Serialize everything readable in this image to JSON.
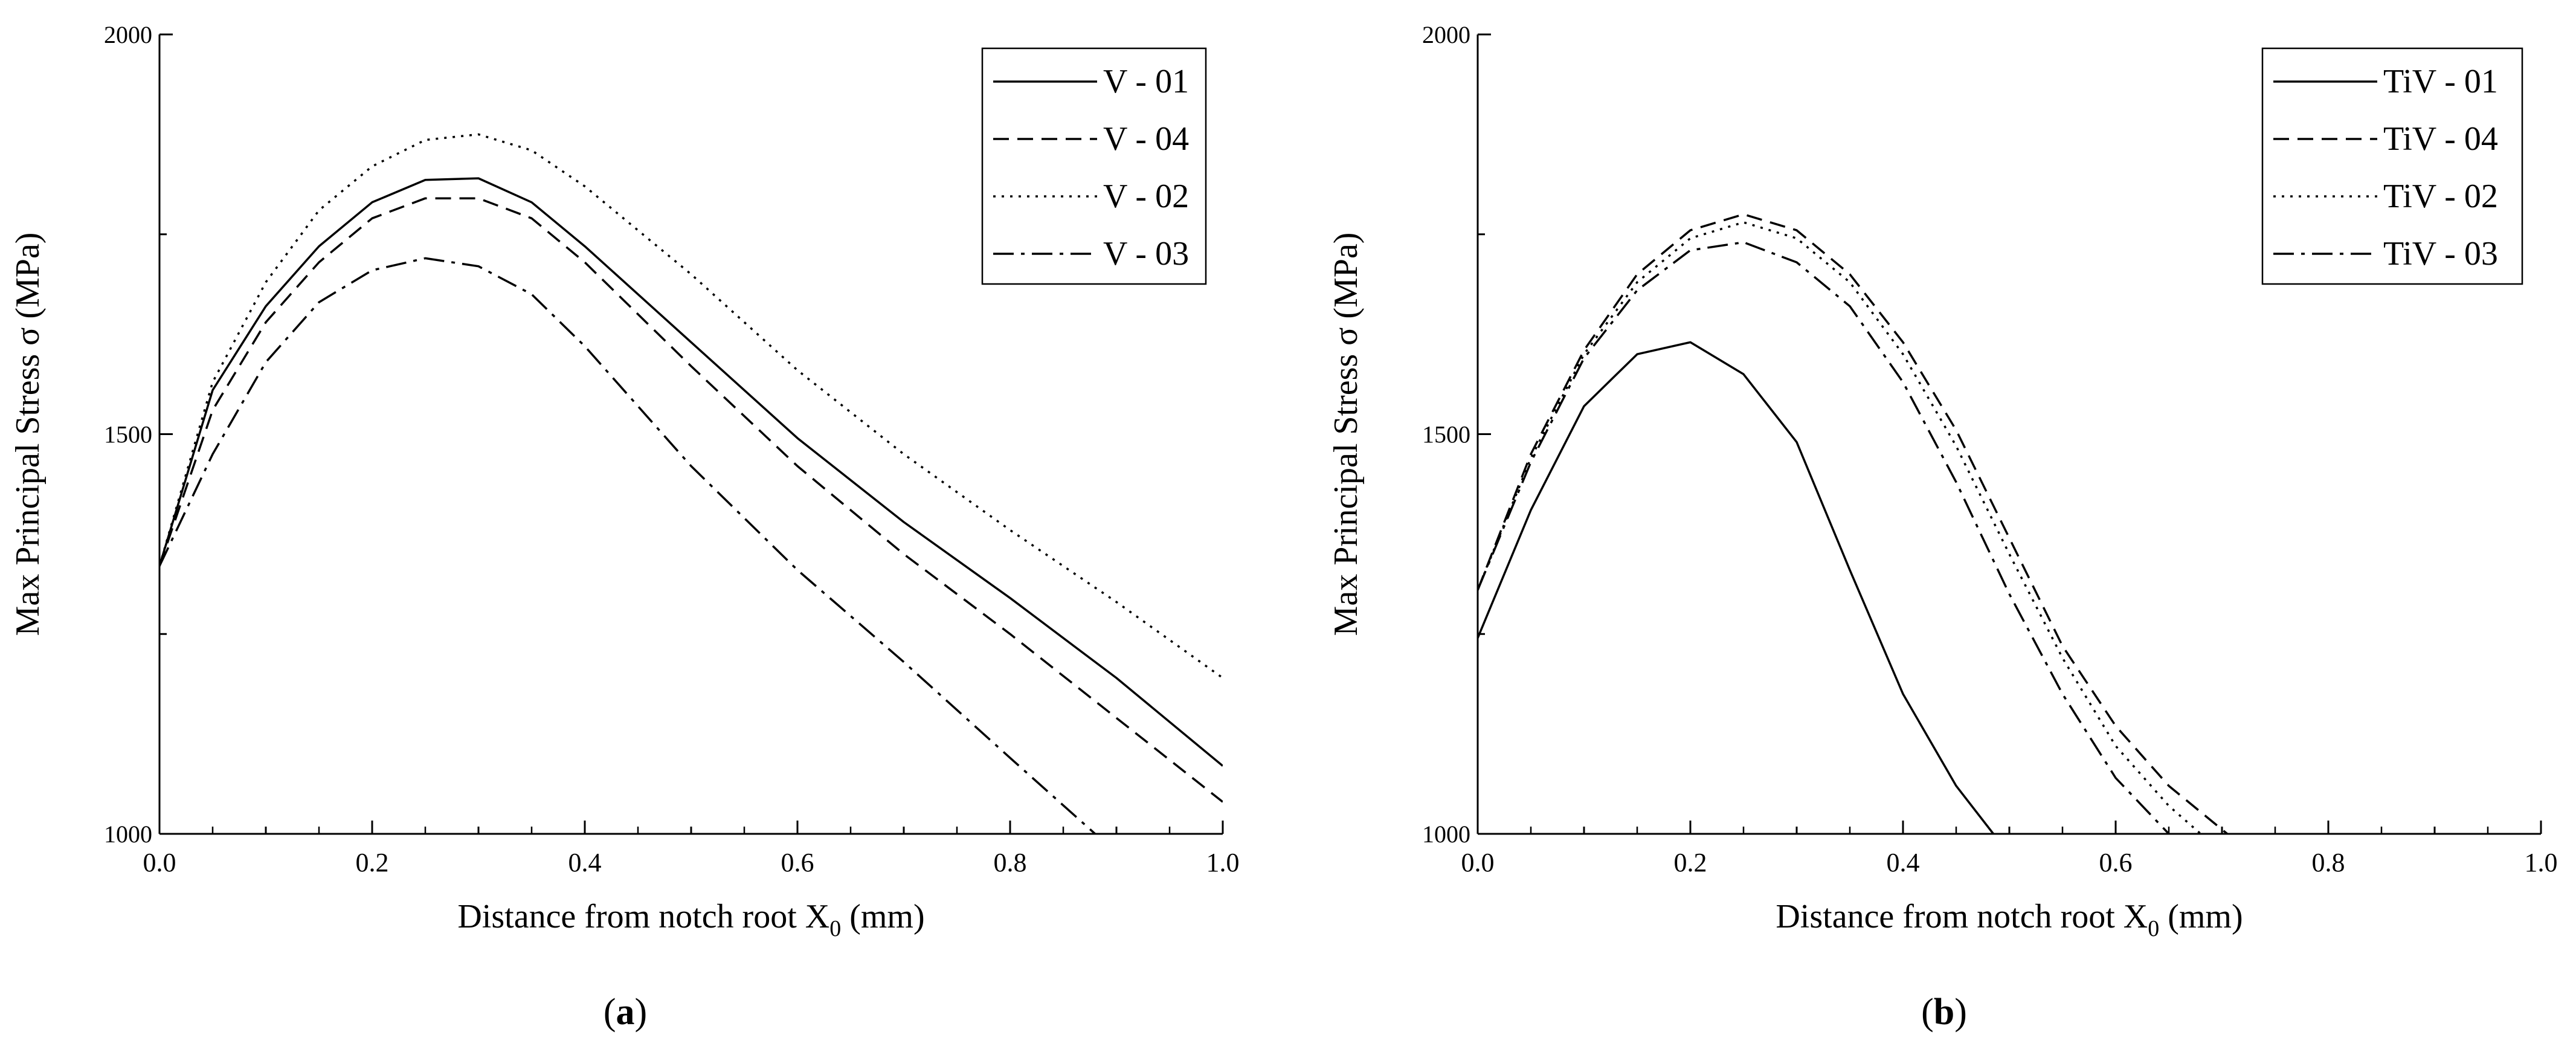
{
  "chart_data": [
    {
      "type": "line",
      "panel_label": "(a)",
      "xlabel": "Distance from notch root X0 (mm)",
      "xlabel_main": "Distance from notch root X",
      "xlabel_sub": "0",
      "xlabel_tail": " (mm)",
      "ylabel": "Max Principal Stress σ (MPa)",
      "xlim": [
        0.0,
        1.0
      ],
      "ylim": [
        1000,
        2000
      ],
      "xticks": [
        "0.0",
        "0.2",
        "0.4",
        "0.6",
        "0.8",
        "1.0"
      ],
      "yticks": [
        "1000",
        "1500",
        "2000"
      ],
      "legend_position": "top-right",
      "series": [
        {
          "name": "V - 01",
          "style": "solid",
          "x": [
            0,
            0.05,
            0.1,
            0.15,
            0.2,
            0.25,
            0.3,
            0.35,
            0.4,
            0.5,
            0.6,
            0.7,
            0.8,
            0.9,
            1.0
          ],
          "y": [
            1335,
            1555,
            1660,
            1735,
            1790,
            1818,
            1820,
            1790,
            1735,
            1615,
            1495,
            1390,
            1295,
            1195,
            1085
          ]
        },
        {
          "name": "V - 04",
          "style": "dashed",
          "x": [
            0,
            0.05,
            0.1,
            0.15,
            0.2,
            0.25,
            0.3,
            0.35,
            0.4,
            0.5,
            0.6,
            0.7,
            0.8,
            0.9,
            1.0
          ],
          "y": [
            1335,
            1530,
            1640,
            1715,
            1770,
            1795,
            1795,
            1770,
            1715,
            1585,
            1460,
            1350,
            1250,
            1145,
            1040
          ]
        },
        {
          "name": "V - 02",
          "style": "dotted",
          "x": [
            0,
            0.05,
            0.1,
            0.15,
            0.2,
            0.25,
            0.3,
            0.35,
            0.4,
            0.5,
            0.6,
            0.7,
            0.8,
            0.9,
            1.0
          ],
          "y": [
            1335,
            1565,
            1690,
            1780,
            1835,
            1868,
            1875,
            1855,
            1810,
            1700,
            1580,
            1475,
            1380,
            1290,
            1195
          ]
        },
        {
          "name": "V - 03",
          "style": "dashdot",
          "x": [
            0,
            0.05,
            0.1,
            0.15,
            0.2,
            0.25,
            0.3,
            0.35,
            0.4,
            0.5,
            0.6,
            0.7,
            0.8,
            0.88
          ],
          "y": [
            1335,
            1475,
            1590,
            1665,
            1705,
            1720,
            1710,
            1675,
            1610,
            1460,
            1330,
            1215,
            1095,
            1000
          ]
        }
      ]
    },
    {
      "type": "line",
      "panel_label": "(b)",
      "xlabel": "Distance from notch root X0 (mm)",
      "xlabel_main": "Distance from notch root X",
      "xlabel_sub": "0",
      "xlabel_tail": " (mm)",
      "ylabel": "Max Principal Stress σ (MPa)",
      "xlim": [
        0.0,
        1.0
      ],
      "ylim": [
        1000,
        2000
      ],
      "xticks": [
        "0.0",
        "0.2",
        "0.4",
        "0.6",
        "0.8",
        "1.0"
      ],
      "yticks": [
        "1000",
        "1500",
        "2000"
      ],
      "legend_position": "top-right",
      "series": [
        {
          "name": "TiV - 01",
          "style": "solid",
          "x": [
            0,
            0.05,
            0.1,
            0.15,
            0.2,
            0.25,
            0.3,
            0.35,
            0.4,
            0.45,
            0.485
          ],
          "y": [
            1245,
            1405,
            1535,
            1600,
            1615,
            1575,
            1490,
            1330,
            1175,
            1060,
            1000
          ]
        },
        {
          "name": "TiV - 04",
          "style": "dashed",
          "x": [
            0,
            0.05,
            0.1,
            0.15,
            0.2,
            0.25,
            0.3,
            0.35,
            0.4,
            0.45,
            0.5,
            0.55,
            0.6,
            0.65,
            0.705
          ],
          "y": [
            1305,
            1475,
            1605,
            1700,
            1755,
            1775,
            1755,
            1700,
            1615,
            1505,
            1370,
            1235,
            1135,
            1060,
            1000
          ]
        },
        {
          "name": "TiV - 02",
          "style": "dotted",
          "x": [
            0,
            0.05,
            0.1,
            0.15,
            0.2,
            0.25,
            0.3,
            0.35,
            0.4,
            0.45,
            0.5,
            0.55,
            0.6,
            0.65,
            0.68
          ],
          "y": [
            1305,
            1470,
            1600,
            1690,
            1745,
            1765,
            1745,
            1690,
            1600,
            1485,
            1350,
            1220,
            1110,
            1035,
            1000
          ]
        },
        {
          "name": "TiV - 03",
          "style": "dashdot",
          "x": [
            0,
            0.05,
            0.1,
            0.15,
            0.2,
            0.25,
            0.3,
            0.35,
            0.4,
            0.45,
            0.5,
            0.55,
            0.6,
            0.65
          ],
          "y": [
            1305,
            1465,
            1595,
            1680,
            1730,
            1740,
            1715,
            1660,
            1565,
            1440,
            1300,
            1175,
            1070,
            1000
          ]
        }
      ]
    }
  ]
}
